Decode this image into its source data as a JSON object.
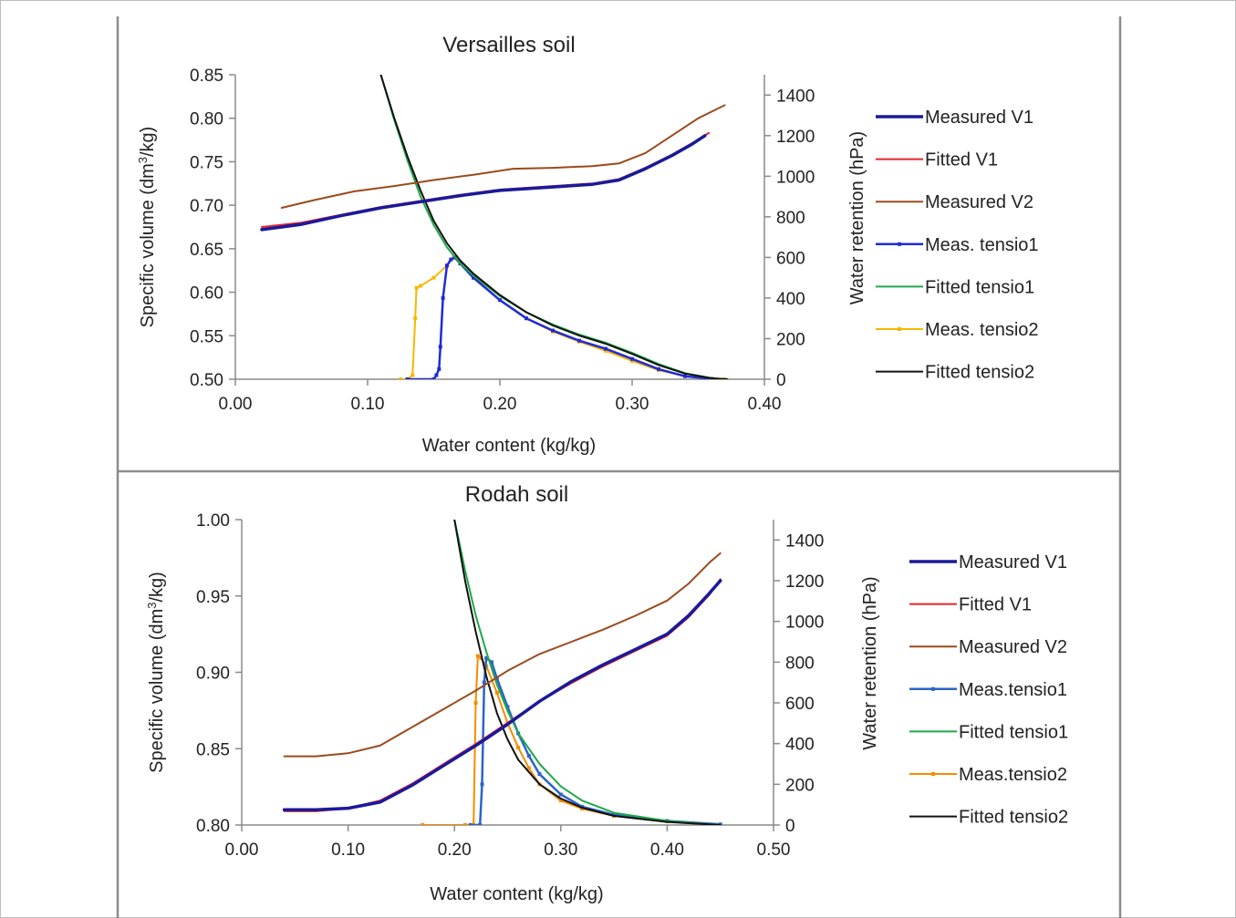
{
  "chart_data": [
    {
      "type": "line",
      "title": "Versailles soil",
      "xlabel": "Water content (kg/kg)",
      "ylabel_left": {
        "pre": "Specific volume (dm",
        "sup": "3",
        "post": "/kg)"
      },
      "ylabel_right": "Water  retention  (hPa)",
      "xlim": [
        0,
        0.4
      ],
      "ylim_left": [
        0.5,
        0.85
      ],
      "ylim_right": [
        0,
        1500
      ],
      "x_ticks": [
        "0.00",
        "0.10",
        "0.20",
        "0.30",
        "0.40"
      ],
      "y_left_ticks": [
        "0.50",
        "0.55",
        "0.60",
        "0.65",
        "0.70",
        "0.75",
        "0.80",
        "0.85"
      ],
      "y_right_ticks": [
        "0",
        "200",
        "400",
        "600",
        "800",
        "1000",
        "1200",
        "1400"
      ],
      "legend_position": "right",
      "series": [
        {
          "name": "Measured V1",
          "axis": "left",
          "color": "#1a1a9a",
          "width": 3.5,
          "marker": false,
          "x": [
            0.02,
            0.05,
            0.08,
            0.11,
            0.14,
            0.17,
            0.2,
            0.24,
            0.27,
            0.29,
            0.31,
            0.33,
            0.345,
            0.355
          ],
          "y": [
            0.672,
            0.678,
            0.688,
            0.697,
            0.704,
            0.711,
            0.717,
            0.721,
            0.724,
            0.729,
            0.742,
            0.757,
            0.77,
            0.78
          ]
        },
        {
          "name": "Fitted V1",
          "axis": "left",
          "color": "#e8242c",
          "width": 2,
          "marker": false,
          "x": [
            0.02,
            0.05,
            0.08,
            0.11,
            0.14,
            0.17,
            0.2,
            0.24,
            0.27,
            0.29,
            0.31,
            0.33,
            0.345,
            0.358
          ],
          "y": [
            0.675,
            0.68,
            0.689,
            0.698,
            0.705,
            0.712,
            0.718,
            0.722,
            0.725,
            0.73,
            0.743,
            0.758,
            0.771,
            0.783
          ]
        },
        {
          "name": "Measured V2",
          "axis": "left",
          "color": "#9b4a1c",
          "width": 2,
          "marker": false,
          "x": [
            0.035,
            0.06,
            0.09,
            0.12,
            0.15,
            0.18,
            0.21,
            0.24,
            0.27,
            0.29,
            0.31,
            0.33,
            0.35,
            0.37
          ],
          "y": [
            0.697,
            0.706,
            0.716,
            0.722,
            0.729,
            0.735,
            0.742,
            0.743,
            0.745,
            0.748,
            0.76,
            0.78,
            0.8,
            0.815
          ]
        },
        {
          "name": "Meas. tensio1",
          "axis": "right",
          "color": "#1f2bd6",
          "width": 2.5,
          "marker": true,
          "x": [
            0.13,
            0.15,
            0.152,
            0.154,
            0.155,
            0.157,
            0.16,
            0.163,
            0.166,
            0.17,
            0.18,
            0.2,
            0.22,
            0.24,
            0.26,
            0.28,
            0.3,
            0.32,
            0.34,
            0.36
          ],
          "y": [
            0,
            0,
            20,
            50,
            160,
            400,
            560,
            590,
            600,
            570,
            500,
            390,
            300,
            240,
            190,
            150,
            100,
            50,
            15,
            2
          ]
        },
        {
          "name": "Fitted tensio1",
          "axis": "right",
          "color": "#1fa84a",
          "width": 2,
          "marker": false,
          "x": [
            0.11,
            0.12,
            0.13,
            0.14,
            0.15,
            0.16,
            0.17,
            0.18,
            0.2,
            0.22,
            0.24,
            0.26,
            0.28,
            0.3,
            0.32,
            0.34,
            0.36,
            0.37
          ],
          "y": [
            1500,
            1280,
            1080,
            900,
            760,
            650,
            570,
            510,
            410,
            330,
            270,
            220,
            180,
            130,
            75,
            30,
            5,
            0
          ]
        },
        {
          "name": "Meas. tensio2",
          "axis": "right",
          "color": "#f5b800",
          "width": 2,
          "marker": true,
          "x": [
            0.125,
            0.13,
            0.134,
            0.136,
            0.137,
            0.14,
            0.15,
            0.16,
            0.165,
            0.17,
            0.18,
            0.2,
            0.22,
            0.24,
            0.26,
            0.28,
            0.3,
            0.32,
            0.34,
            0.36,
            0.37
          ],
          "y": [
            0,
            0,
            20,
            300,
            450,
            460,
            500,
            560,
            600,
            570,
            500,
            390,
            300,
            235,
            185,
            140,
            90,
            45,
            15,
            2,
            0
          ]
        },
        {
          "name": "Fitted tensio2",
          "axis": "right",
          "color": "#111111",
          "width": 2,
          "marker": false,
          "x": [
            0.11,
            0.12,
            0.13,
            0.14,
            0.15,
            0.16,
            0.17,
            0.18,
            0.2,
            0.22,
            0.24,
            0.26,
            0.28,
            0.3,
            0.32,
            0.34,
            0.36,
            0.372
          ],
          "y": [
            1500,
            1290,
            1100,
            930,
            780,
            670,
            585,
            520,
            415,
            330,
            265,
            215,
            175,
            125,
            70,
            28,
            5,
            0
          ]
        }
      ]
    },
    {
      "type": "line",
      "title": "Rodah soil",
      "xlabel": "Water content (kg/kg)",
      "ylabel_left": {
        "pre": "Specific volume (dm",
        "sup": "3",
        "post": "/kg)"
      },
      "ylabel_right": "Water retention  (hPa)",
      "xlim": [
        0,
        0.5
      ],
      "ylim_left": [
        0.8,
        1.0
      ],
      "ylim_right": [
        0,
        1500
      ],
      "x_ticks": [
        "0.00",
        "0.10",
        "0.20",
        "0.30",
        "0.40",
        "0.50"
      ],
      "y_left_ticks": [
        "0.80",
        "0.85",
        "0.90",
        "0.95",
        "1.00"
      ],
      "y_right_ticks": [
        "0",
        "200",
        "400",
        "600",
        "800",
        "1000",
        "1200",
        "1400"
      ],
      "legend_position": "right",
      "series": [
        {
          "name": "Measured V1",
          "axis": "left",
          "color": "#1a1a9a",
          "width": 3.5,
          "marker": false,
          "x": [
            0.04,
            0.07,
            0.1,
            0.13,
            0.16,
            0.19,
            0.22,
            0.25,
            0.28,
            0.31,
            0.34,
            0.37,
            0.4,
            0.42,
            0.44,
            0.45
          ],
          "y": [
            0.81,
            0.81,
            0.811,
            0.815,
            0.826,
            0.839,
            0.852,
            0.866,
            0.881,
            0.894,
            0.905,
            0.915,
            0.925,
            0.937,
            0.952,
            0.96
          ]
        },
        {
          "name": "Fitted V1",
          "axis": "left",
          "color": "#e8242c",
          "width": 2,
          "marker": false,
          "x": [
            0.04,
            0.07,
            0.1,
            0.13,
            0.16,
            0.19,
            0.22,
            0.25,
            0.28,
            0.31,
            0.34,
            0.37,
            0.4,
            0.42,
            0.44,
            0.45
          ],
          "y": [
            0.809,
            0.809,
            0.811,
            0.816,
            0.827,
            0.84,
            0.853,
            0.867,
            0.881,
            0.893,
            0.904,
            0.914,
            0.924,
            0.936,
            0.951,
            0.961
          ]
        },
        {
          "name": "Measured V2",
          "axis": "left",
          "color": "#9b4a1c",
          "width": 2,
          "marker": false,
          "x": [
            0.04,
            0.07,
            0.1,
            0.13,
            0.16,
            0.19,
            0.22,
            0.25,
            0.28,
            0.31,
            0.34,
            0.37,
            0.4,
            0.42,
            0.44,
            0.45
          ],
          "y": [
            0.845,
            0.845,
            0.847,
            0.852,
            0.864,
            0.876,
            0.888,
            0.901,
            0.912,
            0.92,
            0.928,
            0.937,
            0.947,
            0.958,
            0.972,
            0.978
          ]
        },
        {
          "name": "Meas.tensio1",
          "axis": "right",
          "color": "#2a64c8",
          "width": 2.5,
          "marker": true,
          "x": [
            0.215,
            0.224,
            0.226,
            0.228,
            0.23,
            0.235,
            0.24,
            0.25,
            0.26,
            0.27,
            0.28,
            0.3,
            0.32,
            0.35,
            0.4,
            0.45
          ],
          "y": [
            0,
            0,
            200,
            700,
            820,
            800,
            720,
            580,
            450,
            340,
            250,
            150,
            90,
            50,
            20,
            3
          ]
        },
        {
          "name": "Fitted tensio1",
          "axis": "right",
          "color": "#1fa84a",
          "width": 2,
          "marker": false,
          "x": [
            0.2,
            0.21,
            0.22,
            0.23,
            0.24,
            0.25,
            0.26,
            0.28,
            0.3,
            0.32,
            0.35,
            0.4,
            0.45
          ],
          "y": [
            1500,
            1250,
            1030,
            850,
            690,
            560,
            450,
            300,
            190,
            120,
            60,
            20,
            0
          ]
        },
        {
          "name": "Meas.tensio2",
          "axis": "right",
          "color": "#f58c00",
          "width": 2,
          "marker": true,
          "x": [
            0.17,
            0.21,
            0.218,
            0.22,
            0.222,
            0.225,
            0.23,
            0.24,
            0.25,
            0.26,
            0.27,
            0.28,
            0.3,
            0.32,
            0.35,
            0.4,
            0.45
          ],
          "y": [
            0,
            0,
            0,
            600,
            830,
            820,
            780,
            650,
            500,
            380,
            280,
            200,
            120,
            80,
            45,
            18,
            3
          ]
        },
        {
          "name": "Fitted tensio2",
          "axis": "right",
          "color": "#111111",
          "width": 2,
          "marker": false,
          "x": [
            0.2,
            0.21,
            0.22,
            0.23,
            0.24,
            0.25,
            0.26,
            0.28,
            0.3,
            0.32,
            0.35,
            0.4,
            0.45
          ],
          "y": [
            1500,
            1200,
            950,
            730,
            550,
            420,
            320,
            200,
            130,
            85,
            45,
            15,
            0
          ]
        }
      ]
    }
  ]
}
